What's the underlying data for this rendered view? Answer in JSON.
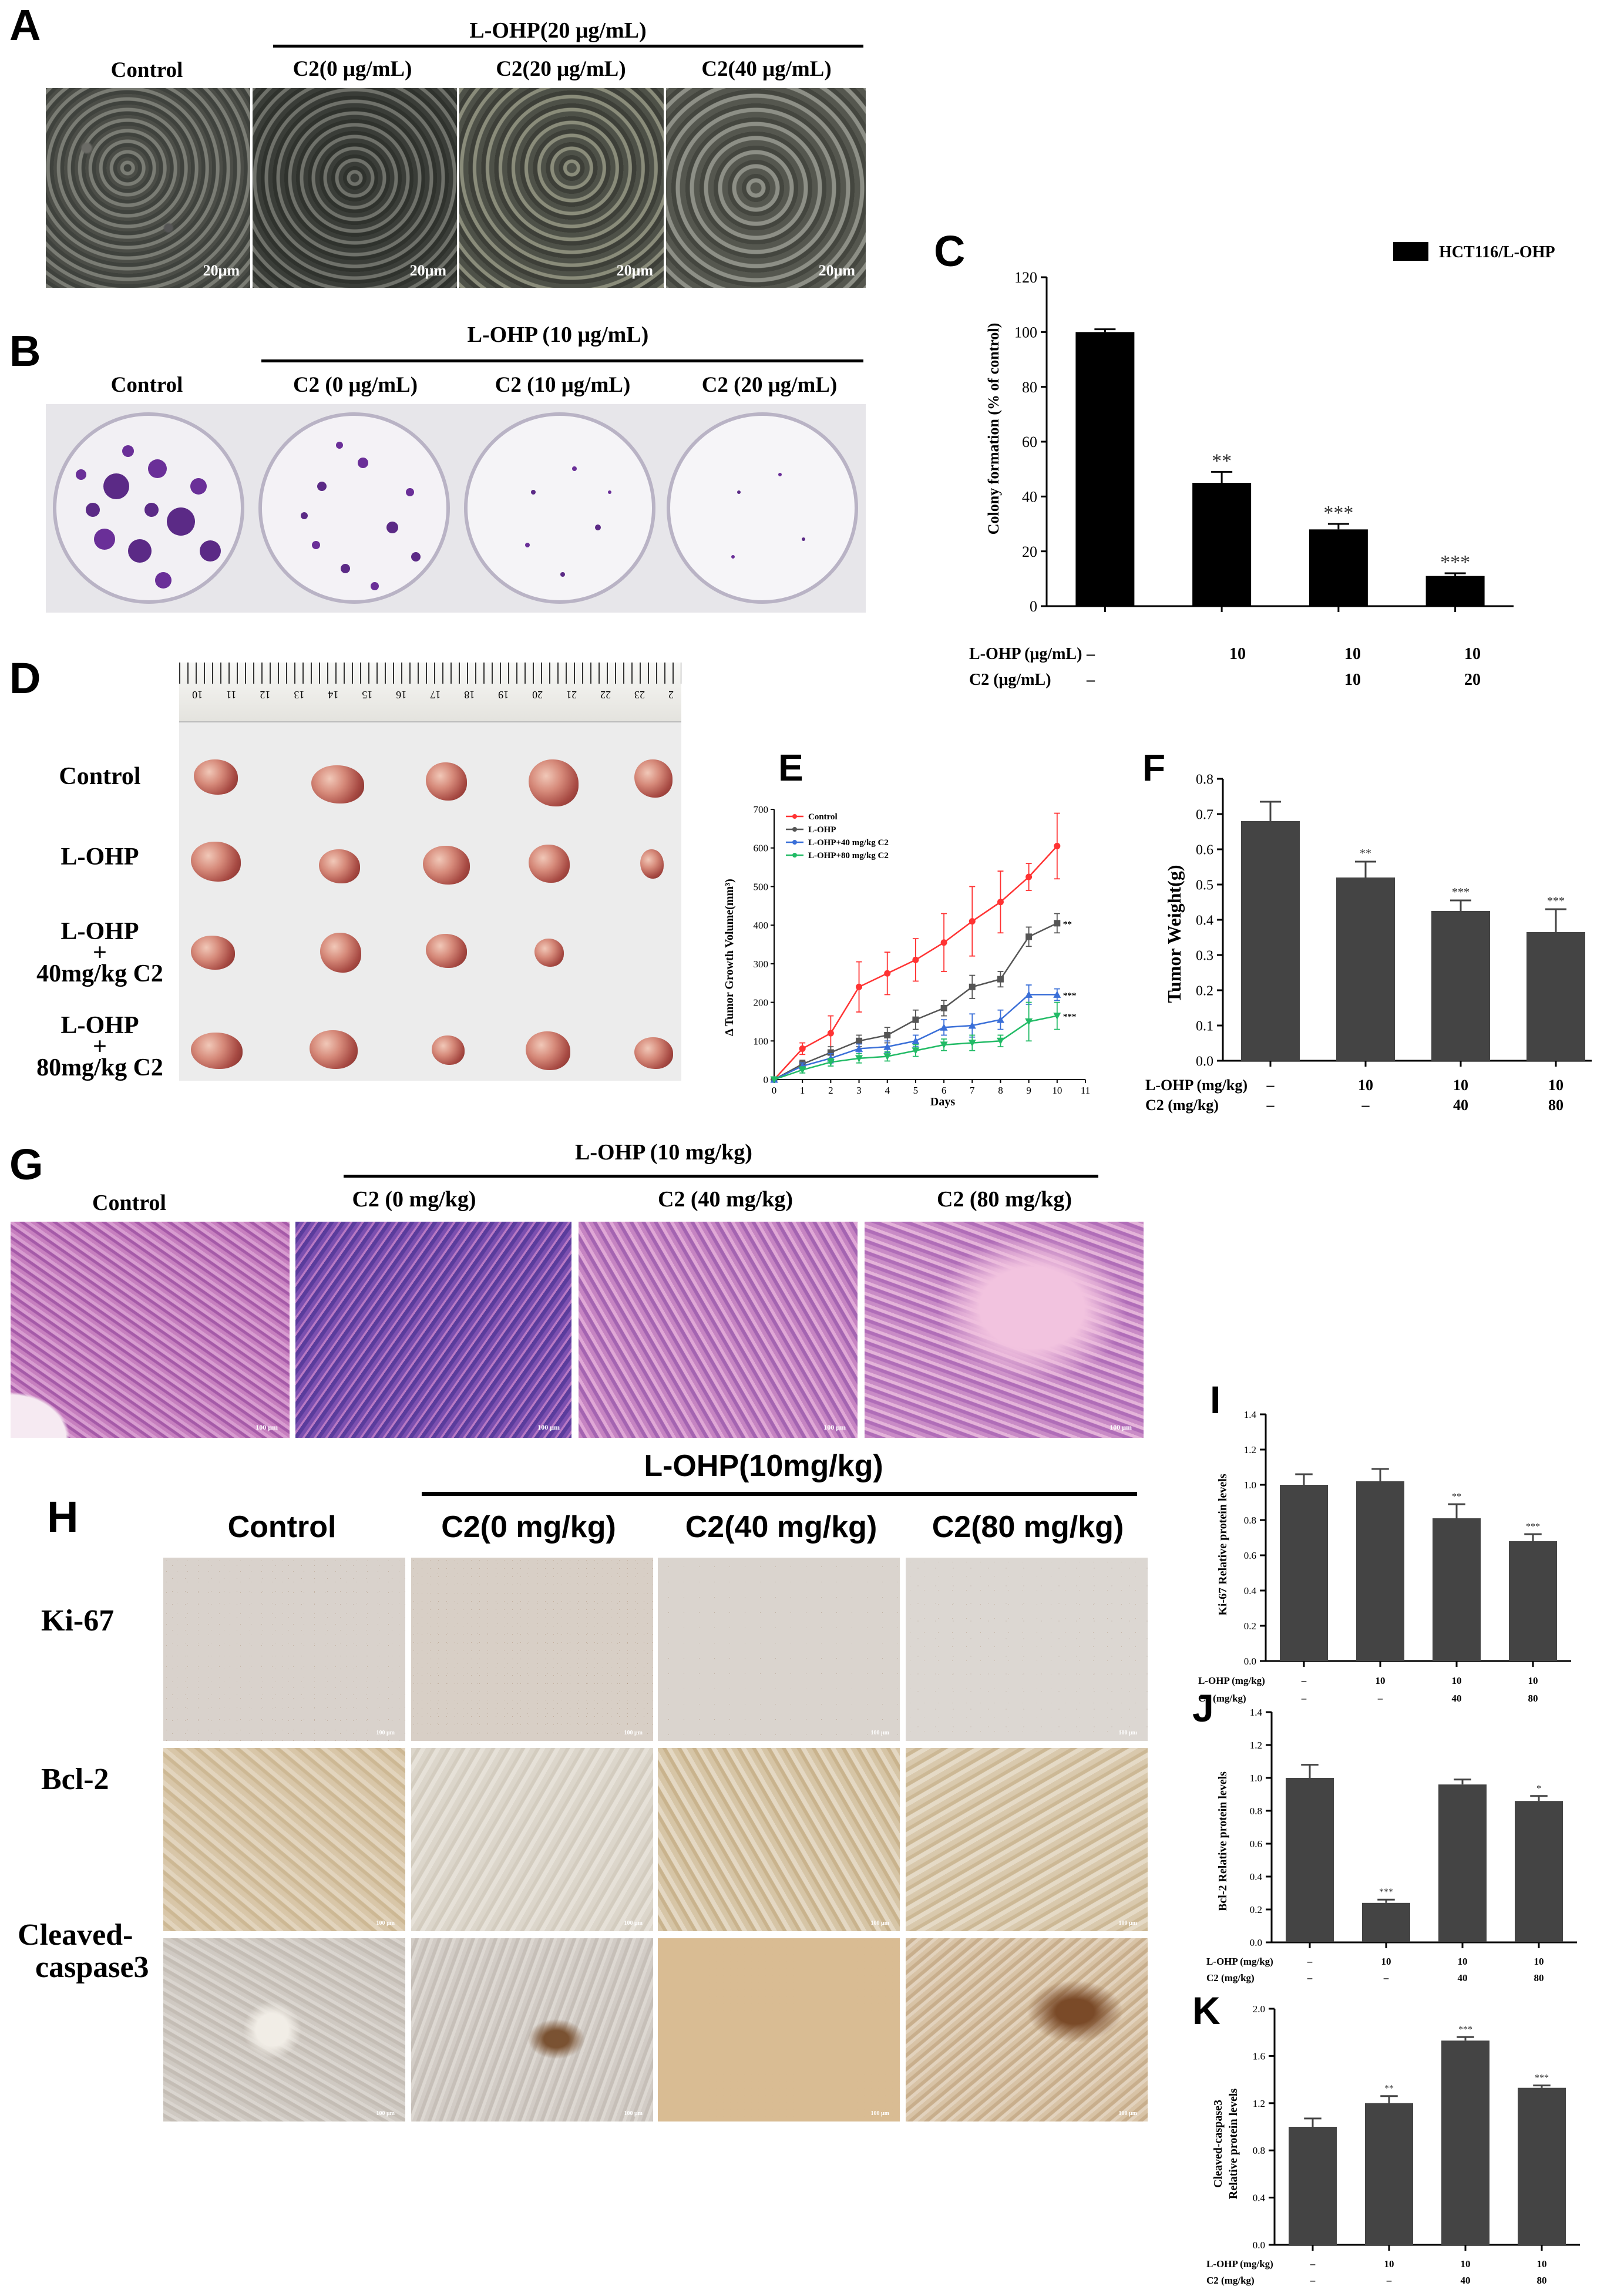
{
  "panels": {
    "A": {
      "label": "A",
      "treatment_header": "L-OHP(20 μg/mL)",
      "columns": [
        "Control",
        "C2(0 μg/mL)",
        "C2(20 μg/mL)",
        "C2(40 μg/mL)"
      ],
      "scale_bar": "20μm"
    },
    "B": {
      "label": "B",
      "treatment_header": "L-OHP (10 μg/mL)",
      "columns": [
        "Control",
        "C2 (0 μg/mL)",
        "C2 (10 μg/mL)",
        "C2 (20 μg/mL)"
      ]
    },
    "C": {
      "label": "C",
      "legend": "HCT116/L-OHP",
      "ylabel": "Colony formation (% of control)",
      "row1_label": "L-OHP (μg/mL)",
      "row2_label": "C2 (μg/mL)",
      "row1": [
        "–",
        "10",
        "10",
        "10"
      ],
      "row2": [
        "–",
        "",
        "10",
        "20"
      ]
    },
    "D": {
      "label": "D",
      "rows": [
        "Control",
        "L-OHP",
        "L-OHP",
        "+",
        "40mg/kg C2",
        "L-OHP",
        "+",
        "80mg/kg C2"
      ],
      "ruler": [
        "2",
        "23",
        "22",
        "21",
        "20",
        "19",
        "18",
        "17",
        "16",
        "15",
        "14",
        "13",
        "12",
        "11",
        "10"
      ]
    },
    "E": {
      "label": "E",
      "ylabel": "Δ Tumor Growth Volume(mm³)",
      "xlabel": "Days"
    },
    "F": {
      "label": "F",
      "ylabel": "Tumor Weight(g)",
      "row1_label": "L-OHP (mg/kg)",
      "row2_label": "C2 (mg/kg)",
      "row1": [
        "–",
        "10",
        "10",
        "10"
      ],
      "row2": [
        "–",
        "–",
        "40",
        "80"
      ]
    },
    "G": {
      "label": "G",
      "treatment_header": "L-OHP (10 mg/kg)",
      "columns": [
        "Control",
        "C2 (0 mg/kg)",
        "C2 (40 mg/kg)",
        "C2 (80 mg/kg)"
      ],
      "scale_bar": "100 μm"
    },
    "H": {
      "label": "H",
      "treatment_header": "L-OHP(10mg/kg)",
      "columns": [
        "Control",
        "C2(0 mg/kg)",
        "C2(40 mg/kg)",
        "C2(80 mg/kg)"
      ],
      "rows": [
        "Ki-67",
        "Bcl-2",
        "Cleaved-",
        "caspase3"
      ],
      "scale_bar": "100 μm"
    },
    "I": {
      "label": "I",
      "ylabel": "Ki-67 Relative protein levels",
      "row1_label": "L-OHP (mg/kg)",
      "row2_label": "C2 (mg/kg)",
      "row1": [
        "–",
        "10",
        "10",
        "10"
      ],
      "row2": [
        "–",
        "–",
        "40",
        "80"
      ]
    },
    "J": {
      "label": "J",
      "ylabel": "Bcl-2 Relative protein levels",
      "row1_label": "L-OHP (mg/kg)",
      "row2_label": "C2 (mg/kg)",
      "row1": [
        "–",
        "10",
        "10",
        "10"
      ],
      "row2": [
        "–",
        "–",
        "40",
        "80"
      ]
    },
    "K": {
      "label": "K",
      "ylabel1": "Cleaved-caspase3",
      "ylabel2": "Relative protein levels",
      "row1_label": "L-OHP (mg/kg)",
      "row2_label": "C2 (mg/kg)",
      "row1": [
        "–",
        "10",
        "10",
        "10"
      ],
      "row2": [
        "–",
        "–",
        "40",
        "80"
      ]
    }
  },
  "chart_data": [
    {
      "id": "C",
      "type": "bar",
      "categories": [
        "Control",
        "L-OHP 10",
        "L-OHP 10 + C2 10",
        "L-OHP 10 + C2 20"
      ],
      "values": [
        100,
        45,
        28,
        11
      ],
      "errors": [
        1,
        4,
        2,
        1
      ],
      "significance": [
        "",
        "**",
        "***",
        "***"
      ],
      "series_name": "HCT116/L-OHP",
      "ylabel": "Colony formation (% of control)",
      "ylim": [
        0,
        120
      ],
      "yticks": [
        0,
        20,
        40,
        60,
        80,
        100,
        120
      ],
      "bar_color": "#000000"
    },
    {
      "id": "E",
      "type": "line",
      "x": [
        0,
        1,
        2,
        3,
        4,
        5,
        6,
        7,
        8,
        9,
        10
      ],
      "series": [
        {
          "name": "Control",
          "color": "#ff3333",
          "marker": "circle",
          "values": [
            0,
            80,
            120,
            240,
            275,
            310,
            355,
            410,
            460,
            525,
            605
          ],
          "errors": [
            0,
            15,
            45,
            65,
            55,
            55,
            75,
            90,
            80,
            35,
            85
          ],
          "sig": ""
        },
        {
          "name": "L-OHP",
          "color": "#555555",
          "marker": "square",
          "values": [
            0,
            40,
            70,
            100,
            115,
            155,
            185,
            240,
            260,
            370,
            405
          ],
          "errors": [
            0,
            10,
            15,
            15,
            20,
            25,
            20,
            30,
            20,
            25,
            25
          ],
          "sig": "**"
        },
        {
          "name": "L-OHP+40 mg/kg C2",
          "color": "#3a6fd8",
          "marker": "triangle",
          "values": [
            0,
            35,
            55,
            80,
            85,
            100,
            135,
            140,
            155,
            220,
            220
          ],
          "errors": [
            0,
            8,
            12,
            12,
            15,
            15,
            20,
            30,
            25,
            25,
            15
          ],
          "sig": "***"
        },
        {
          "name": "L-OHP+80 mg/kg C2",
          "color": "#22bb66",
          "marker": "triangle-down",
          "values": [
            0,
            25,
            45,
            55,
            60,
            75,
            90,
            95,
            100,
            150,
            165
          ],
          "errors": [
            0,
            8,
            10,
            12,
            12,
            15,
            15,
            20,
            15,
            50,
            35
          ],
          "sig": "***"
        }
      ],
      "xlabel": "Days",
      "ylabel": "Δ Tumor Growth Volume(mm³)",
      "xlim": [
        0,
        11
      ],
      "ylim": [
        0,
        700
      ],
      "xticks": [
        0,
        1,
        2,
        3,
        4,
        5,
        6,
        7,
        8,
        9,
        10,
        11
      ],
      "yticks": [
        0,
        100,
        200,
        300,
        400,
        500,
        600,
        700
      ],
      "legend": "top-left"
    },
    {
      "id": "F",
      "type": "bar",
      "categories": [
        "Control",
        "L-OHP 10",
        "L-OHP 10 + C2 40",
        "L-OHP 10 + C2 80"
      ],
      "values": [
        0.68,
        0.52,
        0.425,
        0.365
      ],
      "errors": [
        0.055,
        0.045,
        0.03,
        0.065
      ],
      "significance": [
        "",
        "**",
        "***",
        "***"
      ],
      "ylabel": "Tumor Weight(g)",
      "ylim": [
        0,
        0.8
      ],
      "yticks": [
        0.0,
        0.1,
        0.2,
        0.3,
        0.4,
        0.5,
        0.6,
        0.7,
        0.8
      ],
      "bar_color": "#444444"
    },
    {
      "id": "I",
      "type": "bar",
      "categories": [
        "Control",
        "L-OHP 10",
        "L-OHP 10 + C2 40",
        "L-OHP 10 + C2 80"
      ],
      "values": [
        1.0,
        1.02,
        0.81,
        0.68
      ],
      "errors": [
        0.06,
        0.07,
        0.08,
        0.04
      ],
      "significance": [
        "",
        "",
        "**",
        "***"
      ],
      "ylabel": "Ki-67 Relative protein levels",
      "ylim": [
        0,
        1.4
      ],
      "yticks": [
        0.0,
        0.2,
        0.4,
        0.6,
        0.8,
        1.0,
        1.2,
        1.4
      ],
      "bar_color": "#444444"
    },
    {
      "id": "J",
      "type": "bar",
      "categories": [
        "Control",
        "L-OHP 10",
        "L-OHP 10 + C2 40",
        "L-OHP 10 + C2 80"
      ],
      "values": [
        1.0,
        0.24,
        0.96,
        0.86
      ],
      "errors": [
        0.08,
        0.02,
        0.03,
        0.03
      ],
      "significance": [
        "",
        "***",
        "",
        "*"
      ],
      "ylabel": "Bcl-2 Relative protein levels",
      "ylim": [
        0,
        1.4
      ],
      "yticks": [
        0.0,
        0.2,
        0.4,
        0.6,
        0.8,
        1.0,
        1.2,
        1.4
      ],
      "bar_color": "#444444"
    },
    {
      "id": "K",
      "type": "bar",
      "categories": [
        "Control",
        "L-OHP 10",
        "L-OHP 10 + C2 40",
        "L-OHP 10 + C2 80"
      ],
      "values": [
        1.0,
        1.2,
        1.73,
        1.33
      ],
      "errors": [
        0.07,
        0.06,
        0.03,
        0.02
      ],
      "significance": [
        "",
        "**",
        "***",
        "***"
      ],
      "ylabel": "Cleaved-caspase3 Relative protein levels",
      "ylim": [
        0,
        2.0
      ],
      "yticks": [
        0.0,
        0.4,
        0.8,
        1.2,
        1.6,
        2.0
      ],
      "bar_color": "#444444"
    }
  ]
}
